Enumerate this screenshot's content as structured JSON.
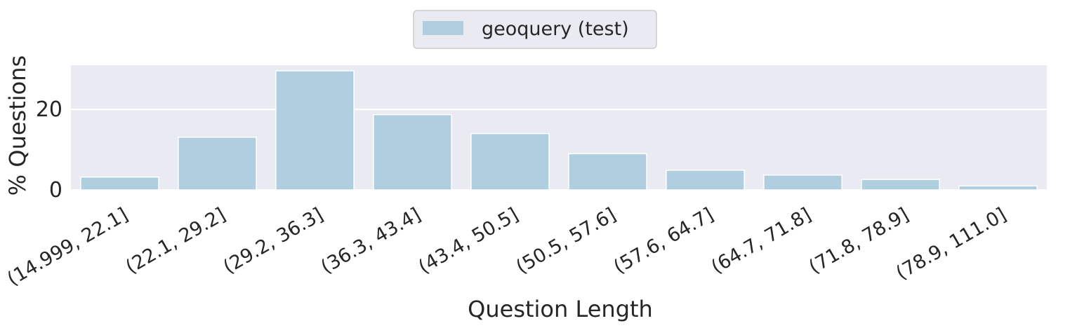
{
  "chart_data": {
    "type": "bar",
    "categories": [
      "(14.999, 22.1]",
      "(22.1, 29.2]",
      "(29.2, 36.3]",
      "(36.3, 43.4]",
      "(43.4, 50.5]",
      "(50.5, 57.6]",
      "(57.6, 64.7]",
      "(64.7, 71.8]",
      "(71.8, 78.9]",
      "(78.9, 111.0]"
    ],
    "series": [
      {
        "name": "geoquery (test)",
        "values": [
          3.2,
          13.1,
          29.6,
          18.7,
          14.0,
          9.0,
          4.9,
          3.7,
          2.6,
          1.0
        ]
      }
    ],
    "xlabel": "Question Length",
    "ylabel": "% Questions",
    "yticks": [
      0,
      20
    ],
    "ylim": [
      0,
      31
    ],
    "grid": true,
    "legend_position": "top-center",
    "colors": {
      "bar": "#afcee0",
      "plot_bg": "#eaeaf2",
      "grid": "#ffffff"
    }
  }
}
